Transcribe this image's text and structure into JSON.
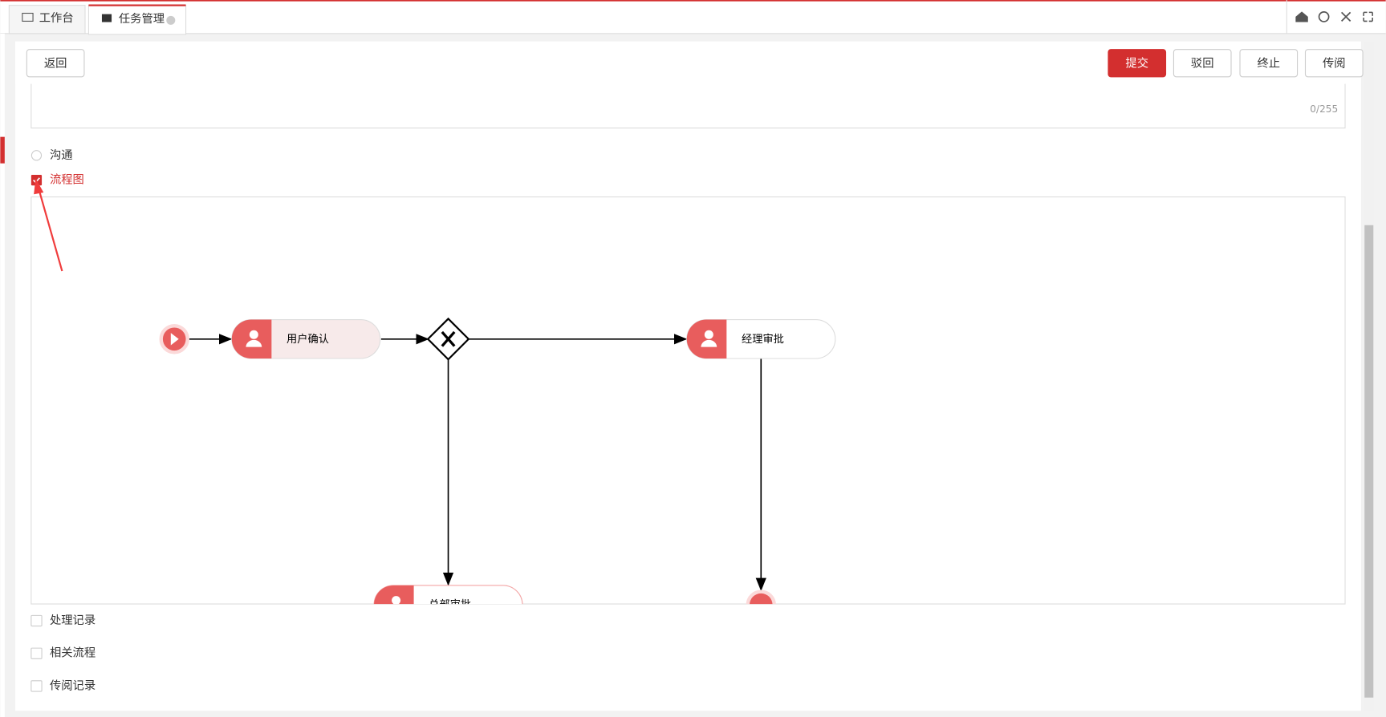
{
  "tabs": [
    {
      "label": "工作台"
    },
    {
      "label": "任务管理"
    }
  ],
  "toolbar": {
    "back": "返回",
    "actions": [
      "提交",
      "驳回",
      "终止",
      "传阅"
    ]
  },
  "textarea": {
    "counter": "0/255"
  },
  "options": [
    "沟通",
    "流程图"
  ],
  "flow": {
    "nodes": [
      {
        "label": "用户确认"
      },
      {
        "label": "经理审批"
      },
      {
        "label": "总部审批"
      }
    ]
  },
  "sections": [
    "处理记录",
    "相关流程",
    "传阅记录"
  ]
}
